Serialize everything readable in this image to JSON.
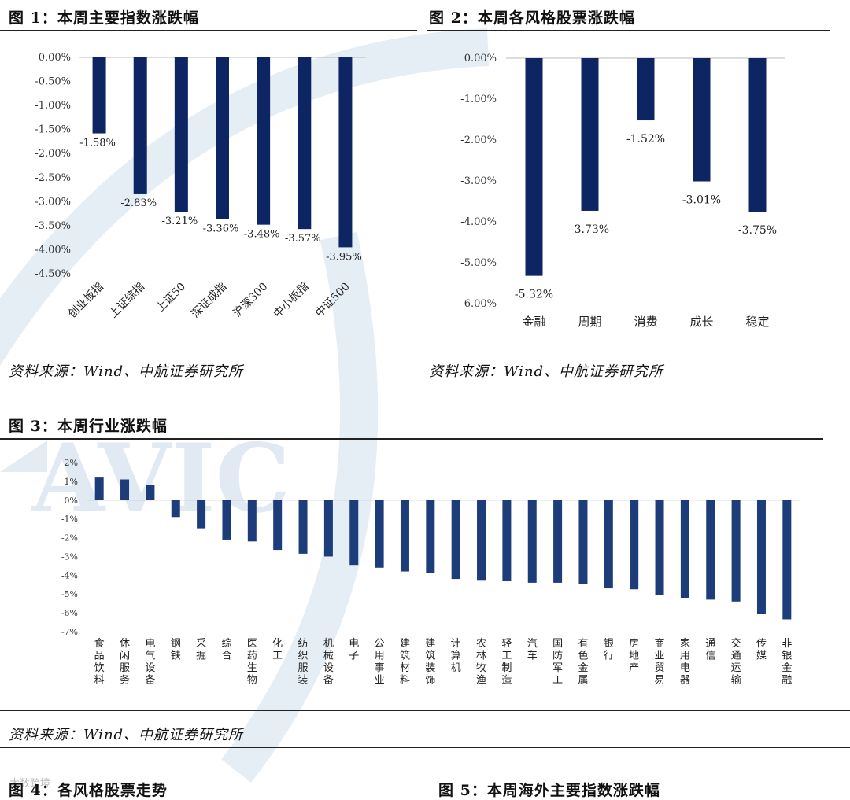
{
  "fig1": {
    "title": "图 1：本周主要指数涨跌幅",
    "source": "资料来源：Wind、中航证券研究所"
  },
  "fig2": {
    "title": "图 2：本周各风格股票涨跌幅",
    "source": "资料来源：Wind、中航证券研究所"
  },
  "fig3": {
    "title": "图 3：本周行业涨跌幅",
    "source": "资料来源：Wind、中航证券研究所"
  },
  "fig4": {
    "title": "图 4：各风格股票走势"
  },
  "fig5": {
    "title": "图 5：本周海外主要指数涨跌幅"
  },
  "watermark_text": "大数跨境",
  "colors": {
    "bar_dark": "#0d2562",
    "bar_mid": "#1c3d7a",
    "watermark": "#dbe6f0"
  },
  "chart_data": [
    {
      "id": "fig1",
      "type": "bar",
      "categories": [
        "创业板指",
        "上证综指",
        "上证50",
        "深证成指",
        "沪深300",
        "中小板指",
        "中证500"
      ],
      "values": [
        -1.58,
        -2.83,
        -3.21,
        -3.36,
        -3.48,
        -3.57,
        -3.95
      ],
      "data_labels": [
        "-1.58%",
        "-2.83%",
        "-3.21%",
        "-3.36%",
        "-3.48%",
        "-3.57%",
        "-3.95%"
      ],
      "ylim": [
        -4.5,
        0
      ],
      "yticks": [
        "0.00%",
        "-0.50%",
        "-1.00%",
        "-1.50%",
        "-2.00%",
        "-2.50%",
        "-3.00%",
        "-3.50%",
        "-4.00%",
        "-4.50%"
      ],
      "grid": false
    },
    {
      "id": "fig2",
      "type": "bar",
      "categories": [
        "金融",
        "周期",
        "消费",
        "成长",
        "稳定"
      ],
      "values": [
        -5.32,
        -3.73,
        -1.52,
        -3.01,
        -3.75
      ],
      "data_labels": [
        "-5.32%",
        "-3.73%",
        "-1.52%",
        "-3.01%",
        "-3.75%"
      ],
      "ylim": [
        -6,
        0
      ],
      "yticks": [
        "0.00%",
        "-1.00%",
        "-2.00%",
        "-3.00%",
        "-4.00%",
        "-5.00%",
        "-6.00%"
      ],
      "grid": false
    },
    {
      "id": "fig3",
      "type": "bar",
      "categories": [
        "食品饮料",
        "休闲服务",
        "电气设备",
        "钢铁",
        "采掘",
        "综合",
        "医药生物",
        "化工",
        "纺织服装",
        "机械设备",
        "电子",
        "公用事业",
        "建筑材料",
        "建筑装饰",
        "计算机",
        "农林牧渔",
        "轻工制造",
        "汽车",
        "国防军工",
        "有色金属",
        "银行",
        "房地产",
        "商业贸易",
        "家用电器",
        "通信",
        "交通运输",
        "传媒",
        "非银金融"
      ],
      "values": [
        1.2,
        1.1,
        0.8,
        -0.9,
        -1.5,
        -2.1,
        -2.2,
        -2.65,
        -2.85,
        -3.0,
        -3.45,
        -3.6,
        -3.8,
        -3.9,
        -4.2,
        -4.25,
        -4.3,
        -4.4,
        -4.4,
        -4.45,
        -4.7,
        -4.75,
        -5.05,
        -5.2,
        -5.3,
        -5.4,
        -6.05,
        -6.35
      ],
      "ylim": [
        -7,
        2
      ],
      "yticks": [
        "2%",
        "1%",
        "0%",
        "-1%",
        "-2%",
        "-3%",
        "-4%",
        "-5%",
        "-6%",
        "-7%"
      ],
      "grid": false
    }
  ]
}
